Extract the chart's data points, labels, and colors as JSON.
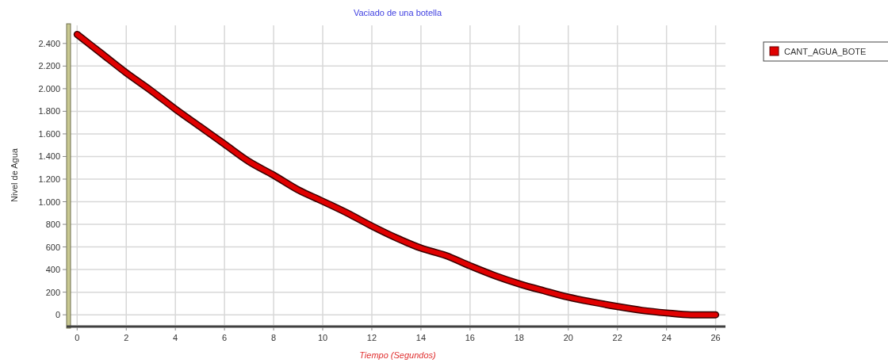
{
  "chart_data": {
    "type": "line",
    "title": "Vaciado de una botella",
    "xlabel": "Tiempo (Segundos)",
    "ylabel": "Nivel de Agua",
    "x": [
      0,
      1,
      2,
      3,
      4,
      5,
      6,
      7,
      8,
      9,
      10,
      11,
      12,
      13,
      14,
      15,
      16,
      17,
      18,
      19,
      20,
      21,
      22,
      23,
      24,
      25,
      26
    ],
    "series": [
      {
        "name": "CANT_AGUA_BOTE",
        "color": "#e00000",
        "values": [
          2480,
          2310,
          2140,
          1985,
          1820,
          1665,
          1510,
          1355,
          1235,
          1105,
          1004,
          900,
          785,
          680,
          590,
          525,
          433,
          347,
          274,
          213,
          156,
          112,
          73,
          39,
          16,
          0,
          0
        ]
      }
    ],
    "xlim": [
      -0.3,
      26.4
    ],
    "xticks": [
      0,
      2,
      4,
      6,
      8,
      10,
      12,
      14,
      16,
      18,
      20,
      22,
      24,
      26
    ],
    "ylim": [
      -90,
      2560
    ],
    "yticks": [
      0,
      200,
      400,
      600,
      800,
      {
        "value": 1000,
        "label": "1.000"
      },
      {
        "value": 1200,
        "label": "1.200"
      },
      {
        "value": 1400,
        "label": "1.400"
      },
      {
        "value": 1600,
        "label": "1.600"
      },
      {
        "value": 1800,
        "label": "1.800"
      },
      {
        "value": 2000,
        "label": "2.000"
      },
      {
        "value": 2200,
        "label": "2.200"
      },
      {
        "value": 2400,
        "label": "2.400"
      }
    ],
    "grid": true,
    "legend": "top right",
    "marker": "none",
    "line_style": "solid"
  }
}
